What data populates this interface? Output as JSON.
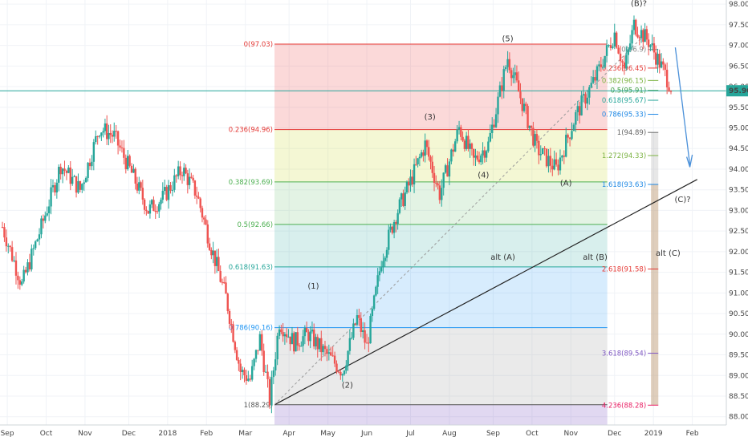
{
  "chart_data": {
    "type": "candlestick",
    "title": "",
    "xlabel": "",
    "ylabel": "",
    "ylim": [
      87.8,
      98.1
    ],
    "grid": true,
    "x_ticks": [
      "Sep",
      "Oct",
      "Nov",
      "Dec",
      "2018",
      "Feb",
      "Mar",
      "Apr",
      "May",
      "Jun",
      "Jul",
      "Aug",
      "Sep",
      "Oct",
      "Nov",
      "Dec",
      "2019",
      "Feb"
    ],
    "y_ticks": [
      "98.00",
      "97.50",
      "97.00",
      "96.50",
      "96.00",
      "95.50",
      "95.00",
      "94.50",
      "94.00",
      "93.50",
      "93.00",
      "92.50",
      "92.00",
      "91.50",
      "91.00",
      "90.50",
      "90.00",
      "89.50",
      "89.00",
      "88.50",
      "88.00"
    ],
    "current_price": "95.90",
    "price_path": [
      [
        2017.66,
        92.6
      ],
      [
        2017.7,
        91.2
      ],
      [
        2017.74,
        92.6
      ],
      [
        2017.78,
        94.1
      ],
      [
        2017.82,
        93.5
      ],
      [
        2017.86,
        95.0
      ],
      [
        2017.89,
        94.8
      ],
      [
        2017.93,
        93.8
      ],
      [
        2017.96,
        93.0
      ],
      [
        2017.99,
        93.3
      ],
      [
        2018.03,
        94.0
      ],
      [
        2018.06,
        93.4
      ],
      [
        2018.09,
        92.1
      ],
      [
        2018.12,
        90.9
      ],
      [
        2018.15,
        89.1
      ],
      [
        2018.17,
        88.9
      ],
      [
        2018.19,
        89.9
      ],
      [
        2018.21,
        88.4
      ],
      [
        2018.23,
        90.3
      ],
      [
        2018.26,
        89.8
      ],
      [
        2018.29,
        90.0
      ],
      [
        2018.32,
        89.6
      ],
      [
        2018.36,
        89.1
      ],
      [
        2018.39,
        90.4
      ],
      [
        2018.41,
        89.7
      ],
      [
        2018.44,
        91.8
      ],
      [
        2018.47,
        92.9
      ],
      [
        2018.5,
        93.7
      ],
      [
        2018.53,
        94.6
      ],
      [
        2018.56,
        93.4
      ],
      [
        2018.6,
        95.0
      ],
      [
        2018.63,
        94.2
      ],
      [
        2018.66,
        94.6
      ],
      [
        2018.7,
        96.7
      ],
      [
        2018.73,
        95.6
      ],
      [
        2018.76,
        94.5
      ],
      [
        2018.8,
        94.0
      ],
      [
        2018.84,
        95.3
      ],
      [
        2018.88,
        96.2
      ],
      [
        2018.92,
        97.3
      ],
      [
        2018.94,
        96.4
      ],
      [
        2018.96,
        97.5
      ],
      [
        2018.99,
        97.1
      ],
      [
        2019.02,
        96.4
      ],
      [
        2019.04,
        95.9
      ]
    ],
    "fib_retracement": [
      {
        "label": "0(97.03)",
        "value": 97.03,
        "color": "#e53935"
      },
      {
        "label": "0.236(94.96)",
        "value": 94.96,
        "color": "#e53935"
      },
      {
        "label": "0.382(93.69)",
        "value": 93.69,
        "color": "#4caf50"
      },
      {
        "label": "0.5(92.66)",
        "value": 92.66,
        "color": "#4caf50"
      },
      {
        "label": "0.618(91.63)",
        "value": 91.63,
        "color": "#26a69a"
      },
      {
        "label": "0.786(90.16)",
        "value": 90.16,
        "color": "#2196f3"
      },
      {
        "label": "1(88.29)",
        "value": 88.29,
        "color": "#555555"
      }
    ],
    "fib_extension": [
      {
        "label": "0(96.9)",
        "value": 96.9,
        "color": "#888888"
      },
      {
        "label": "0.236(96.45)",
        "value": 96.45,
        "color": "#e53935"
      },
      {
        "label": "0.382(96.15)",
        "value": 96.15,
        "color": "#7cb342"
      },
      {
        "label": "0.5(95.91)",
        "value": 95.91,
        "color": "#43a047"
      },
      {
        "label": "0.618(95.67)",
        "value": 95.67,
        "color": "#26a69a"
      },
      {
        "label": "0.786(95.33)",
        "value": 95.33,
        "color": "#1e88e5"
      },
      {
        "label": "1(94.89)",
        "value": 94.89,
        "color": "#666666"
      },
      {
        "label": "1.272(94.33)",
        "value": 94.33,
        "color": "#7cb342"
      },
      {
        "label": "1.618(93.63)",
        "value": 93.63,
        "color": "#1e88e5"
      },
      {
        "label": "2.618(91.58)",
        "value": 91.58,
        "color": "#e53935"
      },
      {
        "label": "3.618(89.54)",
        "value": 89.54,
        "color": "#7e57c2"
      },
      {
        "label": "4.236(88.28)",
        "value": 88.28,
        "color": "#e91e63"
      }
    ],
    "wave_labels": [
      {
        "text": "(1)",
        "x": 2018.3,
        "y": 91.1
      },
      {
        "text": "(2)",
        "x": 2018.37,
        "y": 88.7
      },
      {
        "text": "(3)",
        "x": 2018.54,
        "y": 95.2
      },
      {
        "text": "(4)",
        "x": 2018.65,
        "y": 93.8
      },
      {
        "text": "(5)",
        "x": 2018.7,
        "y": 97.1
      },
      {
        "text": "(A)",
        "x": 2018.82,
        "y": 93.6
      },
      {
        "text": "(B)?",
        "x": 2018.97,
        "y": 97.95
      },
      {
        "text": "(C)?",
        "x": 2019.06,
        "y": 93.2
      },
      {
        "text": "alt (A)",
        "x": 2018.69,
        "y": 91.8
      },
      {
        "text": "alt (B)",
        "x": 2018.88,
        "y": 91.8
      },
      {
        "text": "alt (C)",
        "x": 2019.03,
        "y": 91.9
      }
    ],
    "colors": {
      "up": "#26a69a",
      "down": "#ef5350",
      "trendline": "#222222",
      "price_line": "#26a69a",
      "projection": "#4a90d9"
    }
  }
}
